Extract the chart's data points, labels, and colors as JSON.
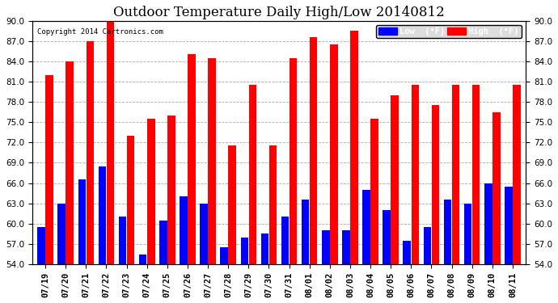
{
  "title": "Outdoor Temperature Daily High/Low 20140812",
  "copyright": "Copyright 2014 Cartronics.com",
  "categories": [
    "07/19",
    "07/20",
    "07/21",
    "07/22",
    "07/23",
    "07/24",
    "07/25",
    "07/26",
    "07/27",
    "07/28",
    "07/29",
    "07/30",
    "07/31",
    "08/01",
    "08/02",
    "08/03",
    "08/04",
    "08/05",
    "08/06",
    "08/07",
    "08/08",
    "08/09",
    "08/10",
    "08/11"
  ],
  "high_values": [
    82.0,
    84.0,
    87.0,
    91.0,
    73.0,
    75.5,
    76.0,
    85.0,
    84.5,
    71.5,
    80.5,
    71.5,
    84.5,
    87.5,
    86.5,
    88.5,
    75.5,
    79.0,
    80.5,
    77.5,
    80.5,
    80.5,
    76.5,
    80.5
  ],
  "low_values": [
    59.5,
    63.0,
    66.5,
    68.5,
    61.0,
    55.5,
    60.5,
    64.0,
    63.0,
    56.5,
    58.0,
    58.5,
    61.0,
    63.5,
    59.0,
    59.0,
    65.0,
    62.0,
    57.5,
    59.5,
    63.5,
    63.0,
    66.0,
    65.5
  ],
  "high_color": "#FF0000",
  "low_color": "#0000FF",
  "bg_color": "#FFFFFF",
  "grid_color": "#AAAAAA",
  "ymin": 54.0,
  "ymax": 90.0,
  "yticks": [
    54.0,
    57.0,
    60.0,
    63.0,
    66.0,
    69.0,
    72.0,
    75.0,
    78.0,
    81.0,
    84.0,
    87.0,
    90.0
  ],
  "title_fontsize": 12,
  "tick_fontsize": 7.5,
  "legend_low_label": "Low  (°F)",
  "legend_high_label": "High  (°F)"
}
